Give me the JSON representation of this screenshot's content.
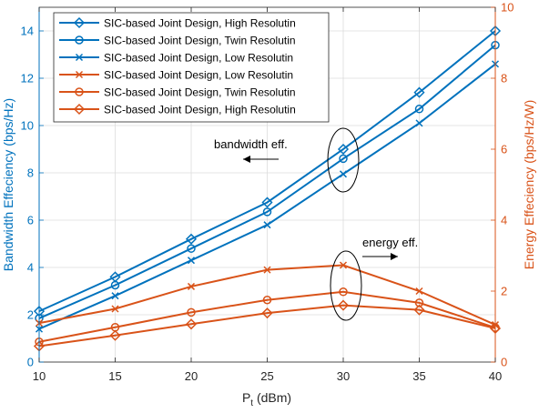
{
  "chart_data": {
    "type": "line",
    "x": [
      10,
      15,
      20,
      25,
      30,
      35,
      40
    ],
    "xlabel_main": "P",
    "xlabel_sub": "t",
    "xlabel_unit": " (dBm)",
    "xlim": [
      10,
      40
    ],
    "xticks": [
      10,
      15,
      20,
      25,
      30,
      35,
      40
    ],
    "ylabel_left": "Bandwidth Effeciency (bps/Hz)",
    "ylim_left": [
      0,
      15
    ],
    "yticks_left": [
      0,
      2,
      4,
      6,
      8,
      10,
      12,
      14
    ],
    "ylabel_right": "Energy Effeciency (bps/Hz/W)",
    "ylim_right": [
      0,
      10
    ],
    "yticks_right": [
      0,
      2,
      4,
      6,
      8,
      10
    ],
    "grid": true,
    "legend_position": "top-left",
    "colors": {
      "left": "#0072BD",
      "right": "#D95319"
    },
    "series": [
      {
        "name": "SIC-based Joint Design, High Resolutin",
        "axis": "left",
        "marker": "diamond",
        "values": [
          2.15,
          3.6,
          5.2,
          6.75,
          9.0,
          11.4,
          14.0
        ]
      },
      {
        "name": "SIC-based Joint Design, Twin Resolutin",
        "axis": "left",
        "marker": "circle",
        "values": [
          1.85,
          3.25,
          4.8,
          6.35,
          8.6,
          10.7,
          13.4
        ]
      },
      {
        "name": "SIC-based Joint Design, Low Resolutin",
        "axis": "left",
        "marker": "x",
        "values": [
          1.4,
          2.8,
          4.3,
          5.8,
          7.95,
          10.1,
          12.6
        ]
      },
      {
        "name": "SIC-based Joint Design, Low Resolutin",
        "axis": "right",
        "marker": "x",
        "values": [
          1.1,
          1.5,
          2.13,
          2.6,
          2.73,
          2.0,
          1.05
        ]
      },
      {
        "name": "SIC-based Joint Design, Twin Resolutin",
        "axis": "right",
        "marker": "circle",
        "values": [
          0.57,
          0.98,
          1.4,
          1.75,
          1.98,
          1.67,
          0.97
        ]
      },
      {
        "name": "SIC-based Joint Design, High Resolutin",
        "axis": "right",
        "marker": "diamond",
        "values": [
          0.45,
          0.75,
          1.07,
          1.38,
          1.6,
          1.47,
          0.95
        ]
      }
    ],
    "annotations": [
      {
        "text": "bandwidth eff.",
        "arrow": "left"
      },
      {
        "text": "energy eff.",
        "arrow": "right"
      }
    ]
  }
}
